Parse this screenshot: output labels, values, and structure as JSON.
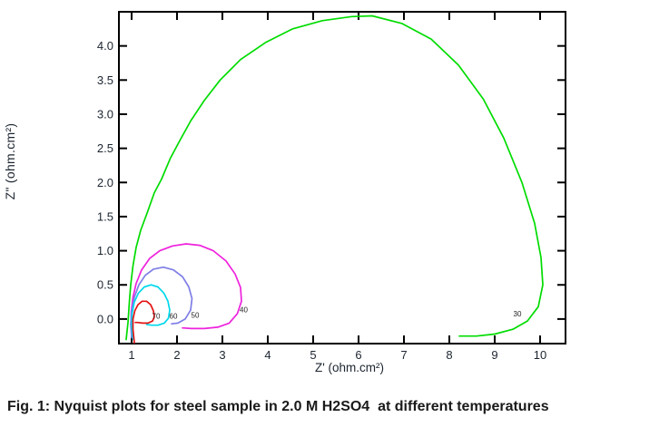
{
  "figure": {
    "caption": "Fig. 1: Nyquist plots for steel sample in 2.0 M H2SO4  at different temperatures"
  },
  "chart_data": {
    "type": "line",
    "title": "",
    "xlabel": "Z' (ohm.cm²)",
    "ylabel": "Z\" (ohm.cm²)",
    "xlim": [
      0.72,
      10.56
    ],
    "ylim": [
      -0.36,
      4.5
    ],
    "grid": false,
    "legend_position": "inline-curve-labels",
    "axis_color": "#000000",
    "tick_text_color": "#1c2530",
    "curve_label_color": "#222222",
    "xticks": [
      1,
      2,
      3,
      4,
      5,
      6,
      7,
      8,
      9,
      10
    ],
    "xtick_labels": [
      "1",
      "2",
      "3",
      "4",
      "5",
      "6",
      "7",
      "8",
      "9",
      "10"
    ],
    "yticks": [
      0,
      0.5,
      1,
      1.5,
      2,
      2.5,
      3,
      3.5,
      4
    ],
    "ytick_labels": [
      "0.0",
      "0.5",
      "1.0",
      "1.5",
      "2.0",
      "2.5",
      "3.0",
      "3.5",
      "4.0"
    ],
    "series_meaning": "temperature in degrees C",
    "series": [
      {
        "name": "30",
        "color": "#00dc00",
        "label_pos": [
          9.5,
          0.07
        ],
        "points": [
          [
            0.88,
            -0.3
          ],
          [
            0.92,
            -0.05
          ],
          [
            0.95,
            0.25
          ],
          [
            0.98,
            0.5
          ],
          [
            1.03,
            0.78
          ],
          [
            1.1,
            1.05
          ],
          [
            1.2,
            1.3
          ],
          [
            1.34,
            1.55
          ],
          [
            1.5,
            1.85
          ],
          [
            1.66,
            2.05
          ],
          [
            1.85,
            2.35
          ],
          [
            2.05,
            2.6
          ],
          [
            2.3,
            2.9
          ],
          [
            2.6,
            3.2
          ],
          [
            2.95,
            3.5
          ],
          [
            3.4,
            3.8
          ],
          [
            3.95,
            4.05
          ],
          [
            4.55,
            4.25
          ],
          [
            5.2,
            4.37
          ],
          [
            5.85,
            4.43
          ],
          [
            6.3,
            4.44
          ],
          [
            6.95,
            4.33
          ],
          [
            7.6,
            4.1
          ],
          [
            8.2,
            3.72
          ],
          [
            8.75,
            3.22
          ],
          [
            9.2,
            2.65
          ],
          [
            9.6,
            2.0
          ],
          [
            9.88,
            1.4
          ],
          [
            10.02,
            0.9
          ],
          [
            10.06,
            0.5
          ],
          [
            9.96,
            0.18
          ],
          [
            9.72,
            -0.03
          ],
          [
            9.4,
            -0.15
          ],
          [
            9.0,
            -0.22
          ],
          [
            8.6,
            -0.25
          ],
          [
            8.22,
            -0.25
          ]
        ]
      },
      {
        "name": "40",
        "color": "#ee22dd",
        "label_pos": [
          3.47,
          0.13
        ],
        "points": [
          [
            1.02,
            -0.28
          ],
          [
            0.99,
            -0.1
          ],
          [
            0.99,
            0.1
          ],
          [
            1.03,
            0.32
          ],
          [
            1.1,
            0.52
          ],
          [
            1.22,
            0.72
          ],
          [
            1.4,
            0.89
          ],
          [
            1.62,
            1.0
          ],
          [
            1.9,
            1.07
          ],
          [
            2.2,
            1.1
          ],
          [
            2.5,
            1.08
          ],
          [
            2.8,
            1.0
          ],
          [
            3.08,
            0.85
          ],
          [
            3.28,
            0.66
          ],
          [
            3.4,
            0.46
          ],
          [
            3.42,
            0.26
          ],
          [
            3.33,
            0.08
          ],
          [
            3.15,
            -0.06
          ],
          [
            2.9,
            -0.12
          ],
          [
            2.6,
            -0.14
          ],
          [
            2.32,
            -0.14
          ],
          [
            2.12,
            -0.13
          ]
        ]
      },
      {
        "name": "50",
        "color": "#7e7ee6",
        "label_pos": [
          2.4,
          0.05
        ],
        "points": [
          [
            1.0,
            -0.27
          ],
          [
            0.98,
            -0.08
          ],
          [
            1.0,
            0.12
          ],
          [
            1.06,
            0.32
          ],
          [
            1.16,
            0.5
          ],
          [
            1.3,
            0.64
          ],
          [
            1.48,
            0.73
          ],
          [
            1.7,
            0.76
          ],
          [
            1.92,
            0.72
          ],
          [
            2.12,
            0.62
          ],
          [
            2.26,
            0.47
          ],
          [
            2.33,
            0.3
          ],
          [
            2.3,
            0.13
          ],
          [
            2.18,
            0.0
          ],
          [
            2.02,
            -0.06
          ],
          [
            1.88,
            -0.07
          ]
        ]
      },
      {
        "name": "60",
        "color": "#00d8ec",
        "label_pos": [
          1.92,
          0.04
        ],
        "points": [
          [
            1.03,
            -0.3
          ],
          [
            1.0,
            -0.1
          ],
          [
            1.01,
            0.08
          ],
          [
            1.06,
            0.25
          ],
          [
            1.15,
            0.38
          ],
          [
            1.28,
            0.47
          ],
          [
            1.43,
            0.5
          ],
          [
            1.58,
            0.47
          ],
          [
            1.71,
            0.38
          ],
          [
            1.8,
            0.26
          ],
          [
            1.84,
            0.13
          ],
          [
            1.81,
            0.01
          ],
          [
            1.72,
            -0.06
          ],
          [
            1.58,
            -0.09
          ],
          [
            1.44,
            -0.09
          ],
          [
            1.33,
            -0.08
          ]
        ]
      },
      {
        "name": "70",
        "color": "#e31414",
        "label_pos": [
          1.54,
          0.04
        ],
        "points": [
          [
            1.06,
            -0.35
          ],
          [
            1.03,
            -0.15
          ],
          [
            1.03,
            0.0
          ],
          [
            1.07,
            0.12
          ],
          [
            1.14,
            0.21
          ],
          [
            1.23,
            0.26
          ],
          [
            1.33,
            0.26
          ],
          [
            1.42,
            0.21
          ],
          [
            1.48,
            0.12
          ],
          [
            1.5,
            0.03
          ],
          [
            1.46,
            -0.03
          ],
          [
            1.36,
            -0.06
          ],
          [
            1.24,
            -0.06
          ],
          [
            1.13,
            -0.05
          ],
          [
            1.08,
            -0.05
          ]
        ]
      }
    ]
  }
}
